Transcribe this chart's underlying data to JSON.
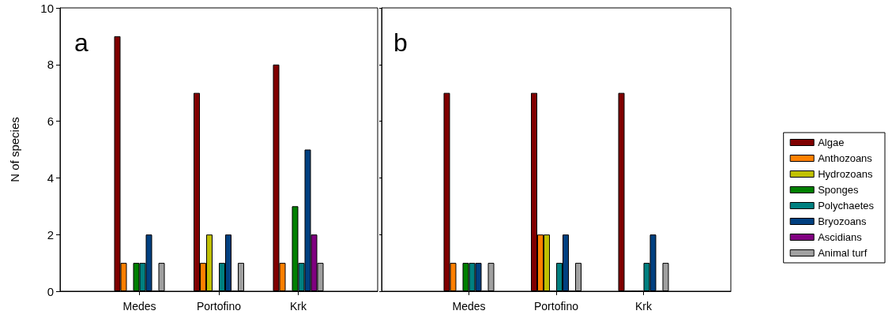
{
  "chart_data": [
    {
      "type": "bar",
      "ylabel": "N of species",
      "annotations": [
        "a"
      ],
      "categories": [
        null,
        "Medes",
        "Portofino",
        "Krk",
        null
      ],
      "ylim": [
        0,
        10
      ],
      "yticks": [
        0,
        2,
        4,
        6,
        8,
        10
      ],
      "grid": false,
      "legend": false,
      "series": [
        {
          "color": "#800000",
          "values": [
            null,
            9,
            7,
            8,
            null
          ]
        },
        {
          "color": "#ff8000",
          "values": [
            null,
            1,
            1,
            1,
            null
          ]
        },
        {
          "color": "#c0c000",
          "values": [
            null,
            0,
            2,
            0,
            null
          ]
        },
        {
          "color": "#008000",
          "values": [
            null,
            1,
            0,
            3,
            null
          ]
        },
        {
          "color": "#008080",
          "values": [
            null,
            1,
            1,
            1,
            null
          ]
        },
        {
          "color": "#004080",
          "values": [
            null,
            2,
            2,
            5,
            null
          ]
        },
        {
          "color": "#800080",
          "values": [
            null,
            0,
            0,
            2,
            null
          ]
        },
        {
          "color": "#a0a0a0",
          "values": [
            null,
            1,
            1,
            1,
            null
          ]
        }
      ]
    },
    {
      "type": "bar",
      "annotations": [
        "b"
      ],
      "categories": [
        null,
        "Medes",
        "Portofino",
        "Krk",
        null
      ],
      "ylim": [
        0,
        10
      ],
      "yticks": [
        0,
        2,
        4,
        6,
        8,
        10
      ],
      "tick_labels": "x",
      "grid": false,
      "legend": "right",
      "series": [
        {
          "name": "Algae",
          "color": "#800000",
          "values": [
            null,
            7,
            7,
            7,
            null
          ]
        },
        {
          "name": "Anthozoans",
          "color": "#ff8000",
          "values": [
            null,
            1,
            2,
            0,
            null
          ]
        },
        {
          "name": "Hydrozoans",
          "color": "#c0c000",
          "values": [
            null,
            0,
            2,
            0,
            null
          ]
        },
        {
          "name": "Sponges",
          "color": "#008000",
          "values": [
            null,
            1,
            0,
            0,
            null
          ]
        },
        {
          "name": "Polychaetes",
          "color": "#008080",
          "values": [
            null,
            1,
            1,
            1,
            null
          ]
        },
        {
          "name": "Bryozoans",
          "color": "#004080",
          "values": [
            null,
            1,
            2,
            2,
            null
          ]
        },
        {
          "name": "Ascidians",
          "color": "#800080",
          "values": [
            null,
            0,
            0,
            0,
            null
          ]
        },
        {
          "name": "Animal turf",
          "color": "#a0a0a0",
          "values": [
            null,
            1,
            1,
            1,
            null
          ]
        }
      ]
    }
  ]
}
